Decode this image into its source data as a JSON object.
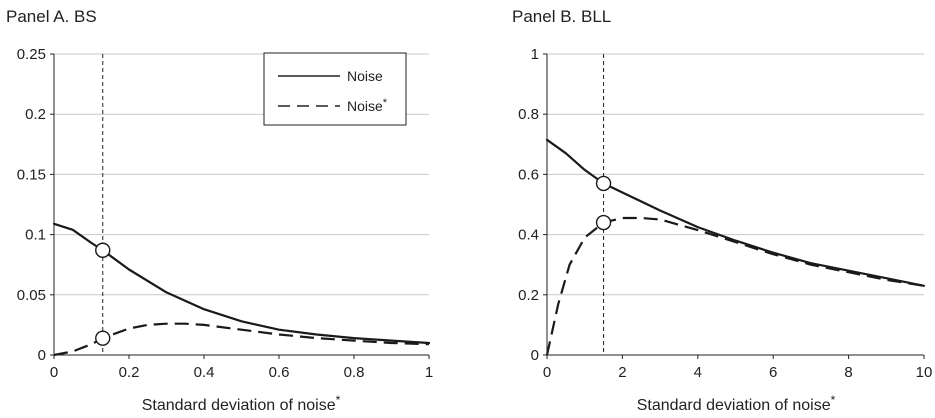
{
  "chart_data": [
    {
      "type": "line",
      "title": "Panel A. BS",
      "xlabel": "Standard deviation of noise*",
      "ylabel": "",
      "xlim": [
        0,
        1
      ],
      "ylim": [
        0,
        0.25
      ],
      "xticks": [
        0,
        0.2,
        0.4,
        0.6,
        0.8,
        1
      ],
      "xtick_labels": [
        "0",
        "0.2",
        "0.4",
        "0.6",
        "0.8",
        "1"
      ],
      "yticks": [
        0,
        0.05,
        0.1,
        0.15,
        0.2,
        0.25
      ],
      "ytick_labels": [
        "0",
        "0.05",
        "0.1",
        "0.15",
        "0.2",
        "0.25"
      ],
      "grid": "horizontal",
      "legend_position": "top-right",
      "vline_x": 0.13,
      "series": [
        {
          "name": "Noise",
          "style": "solid",
          "x": [
            0,
            0.05,
            0.1,
            0.13,
            0.2,
            0.3,
            0.4,
            0.5,
            0.6,
            0.7,
            0.8,
            0.9,
            1.0
          ],
          "y": [
            0.109,
            0.104,
            0.093,
            0.087,
            0.071,
            0.052,
            0.038,
            0.028,
            0.021,
            0.017,
            0.014,
            0.012,
            0.01
          ]
        },
        {
          "name": "Noise*",
          "style": "dashed",
          "x": [
            0,
            0.05,
            0.1,
            0.13,
            0.2,
            0.25,
            0.3,
            0.35,
            0.4,
            0.5,
            0.6,
            0.7,
            0.8,
            0.9,
            1.0
          ],
          "y": [
            0,
            0.003,
            0.009,
            0.014,
            0.022,
            0.025,
            0.026,
            0.026,
            0.025,
            0.021,
            0.017,
            0.014,
            0.012,
            0.01,
            0.009
          ]
        }
      ],
      "markers": [
        {
          "x": 0.13,
          "y": 0.087
        },
        {
          "x": 0.13,
          "y": 0.014
        }
      ]
    },
    {
      "type": "line",
      "title": "Panel B. BLL",
      "xlabel": "Standard deviation of noise*",
      "ylabel": "",
      "xlim": [
        0,
        10
      ],
      "ylim": [
        0,
        1
      ],
      "xticks": [
        0,
        2,
        4,
        6,
        8,
        10
      ],
      "xtick_labels": [
        "0",
        "2",
        "4",
        "6",
        "8",
        "10"
      ],
      "yticks": [
        0,
        0.2,
        0.4,
        0.6,
        0.8,
        1
      ],
      "ytick_labels": [
        "0",
        "0.2",
        "0.4",
        "0.6",
        "0.8",
        "1"
      ],
      "grid": "horizontal",
      "vline_x": 1.5,
      "series": [
        {
          "name": "Noise",
          "style": "solid",
          "x": [
            0,
            0.5,
            1,
            1.5,
            2,
            3,
            4,
            5,
            6,
            7,
            8,
            9,
            10
          ],
          "y": [
            0.715,
            0.67,
            0.615,
            0.57,
            0.54,
            0.48,
            0.425,
            0.38,
            0.34,
            0.305,
            0.28,
            0.255,
            0.23
          ]
        },
        {
          "name": "Noise*",
          "style": "dashed",
          "x": [
            0,
            0.3,
            0.6,
            1,
            1.5,
            2,
            2.5,
            3,
            4,
            5,
            6,
            7,
            8,
            9,
            10
          ],
          "y": [
            0,
            0.17,
            0.3,
            0.39,
            0.44,
            0.455,
            0.455,
            0.45,
            0.415,
            0.375,
            0.335,
            0.3,
            0.275,
            0.25,
            0.23
          ]
        }
      ],
      "markers": [
        {
          "x": 1.5,
          "y": 0.57
        },
        {
          "x": 1.5,
          "y": 0.44
        }
      ]
    }
  ],
  "legend": {
    "entries": [
      {
        "label": "Noise",
        "style": "solid"
      },
      {
        "label": "Noise",
        "sup": "*",
        "style": "dashed"
      }
    ]
  }
}
